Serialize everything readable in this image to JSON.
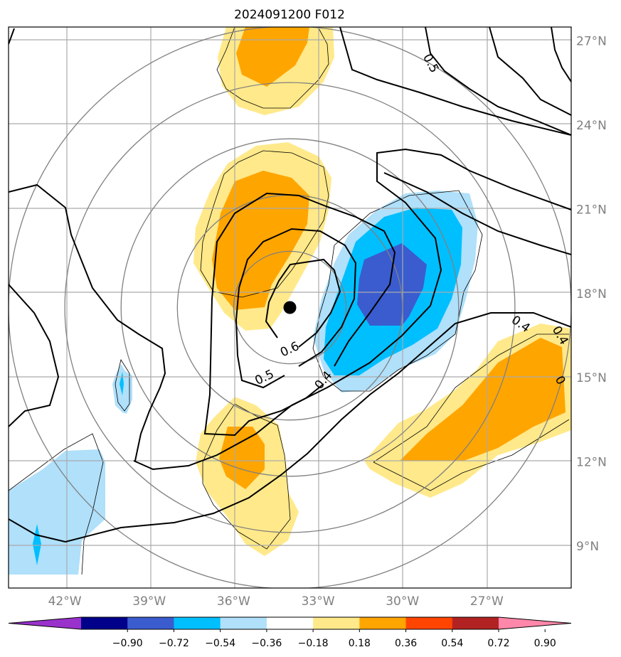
{
  "title": "2024091200 F012",
  "map": {
    "lon_range": [
      -44.0,
      -24.0
    ],
    "lat_range": [
      7.5,
      27.5
    ],
    "lon_ticks": [
      {
        "value": -42,
        "label": "42°W"
      },
      {
        "value": -39,
        "label": "39°W"
      },
      {
        "value": -36,
        "label": "36°W"
      },
      {
        "value": -33,
        "label": "33°W"
      },
      {
        "value": -30,
        "label": "30°W"
      },
      {
        "value": -27,
        "label": "27°W"
      }
    ],
    "lat_ticks": [
      {
        "value": 9,
        "label": "9°N"
      },
      {
        "value": 12,
        "label": "12°N"
      },
      {
        "value": 15,
        "label": "15°N"
      },
      {
        "value": 18,
        "label": "18°N"
      },
      {
        "value": 21,
        "label": "21°N"
      },
      {
        "value": 24,
        "label": "24°N"
      },
      {
        "value": 27,
        "label": "27°N"
      }
    ],
    "storm_center": {
      "lon": -34.0,
      "lat": 17.5
    },
    "range_rings_deg": [
      2,
      4,
      6,
      8,
      10
    ],
    "contour_labels": [
      {
        "text": "0.6",
        "lon": -34.0,
        "lat": 16.0,
        "rot": -25
      },
      {
        "text": "0.5",
        "lon": -34.9,
        "lat": 15.0,
        "rot": -25
      },
      {
        "text": "0.4",
        "lon": -32.8,
        "lat": 14.9,
        "rot": -50
      },
      {
        "text": "0.5",
        "lon": -29.0,
        "lat": 26.2,
        "rot": 62
      },
      {
        "text": "0.4",
        "lon": -25.8,
        "lat": 16.9,
        "rot": 35
      },
      {
        "text": "0.4",
        "lon": -24.4,
        "lat": 16.5,
        "rot": 60
      },
      {
        "text": "0",
        "lon": -24.4,
        "lat": 14.9,
        "rot": 60
      }
    ]
  },
  "colorbar": {
    "ticks": [
      "−0.90",
      "−0.72",
      "−0.54",
      "−0.36",
      "−0.18",
      "0.18",
      "0.36",
      "0.54",
      "0.72",
      "0.90"
    ],
    "colors": [
      "#9932cc",
      "#00008b",
      "#3a5ccf",
      "#00bfff",
      "#b0e0fa",
      "#ffffff",
      "#ffe98a",
      "#ffa500",
      "#ff4500",
      "#b22222",
      "#ff88aa"
    ]
  },
  "colors": {
    "pos1": "#ffe98a",
    "pos2": "#ffa500",
    "neg1": "#b0e0fa",
    "neg2": "#00bfff",
    "neg3": "#3a5ccf",
    "grid": "#aaaaaa",
    "ring": "#808080"
  }
}
